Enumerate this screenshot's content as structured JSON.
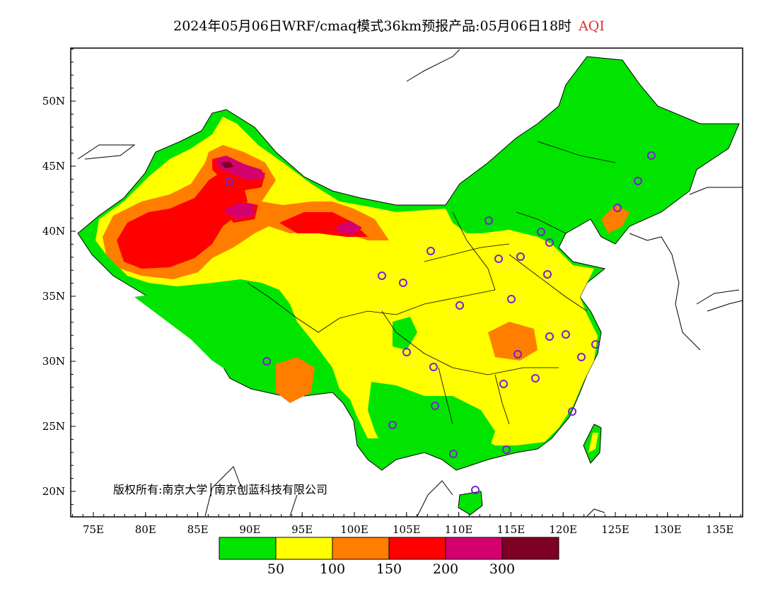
{
  "title": {
    "main": "2024年05月06日WRF/cmaq模式36km预报产品:05月06日18时",
    "variable": "AQI"
  },
  "copyright": "版权所有:南京大学│南京创蓝科技有限公司",
  "axes": {
    "lon_ticks": [
      "75E",
      "80E",
      "85E",
      "90E",
      "95E",
      "100E",
      "105E",
      "110E",
      "115E",
      "120E",
      "125E",
      "130E",
      "135E"
    ],
    "lat_ticks": [
      "20N",
      "25N",
      "30N",
      "35N",
      "40N",
      "45N",
      "50N"
    ]
  },
  "legend": {
    "thresholds": [
      "50",
      "100",
      "150",
      "200",
      "300"
    ],
    "colors": [
      "#00e400",
      "#ffff00",
      "#ff7e00",
      "#ff0000",
      "#d4006e",
      "#7e0023"
    ]
  },
  "colors": {
    "ocean": "#ffffff",
    "station_marker": "#7a20d0",
    "boundary": "#000000"
  }
}
